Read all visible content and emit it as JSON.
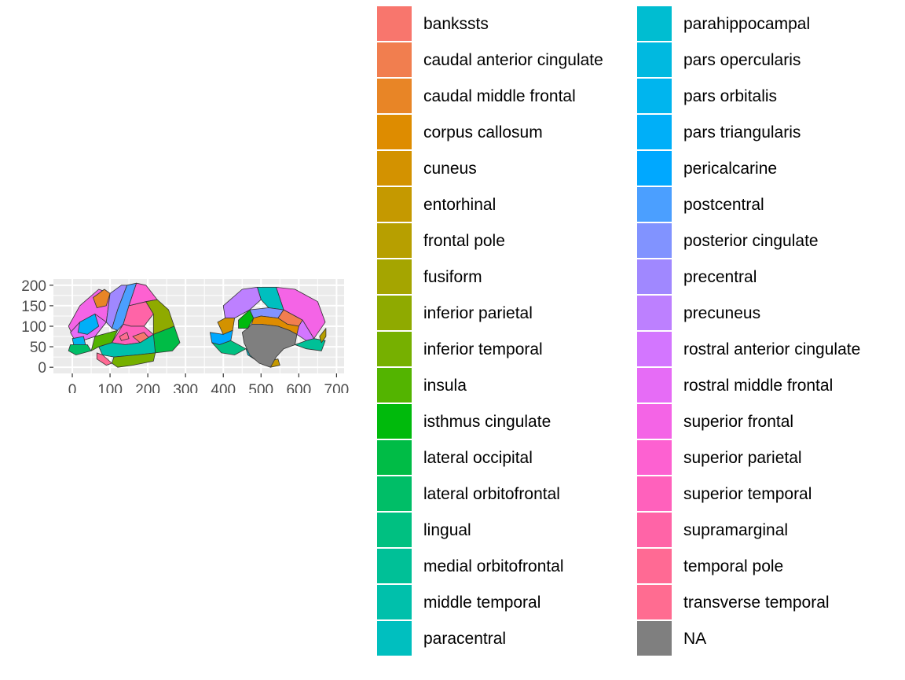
{
  "chart_data": {
    "type": "map",
    "title": "",
    "xlabel": "",
    "ylabel": "",
    "xlim": [
      -50,
      720
    ],
    "ylim": [
      -15,
      215
    ],
    "x_ticks": [
      "0",
      "100",
      "200",
      "300",
      "400",
      "500",
      "600",
      "700"
    ],
    "x_tick_values": [
      0,
      100,
      200,
      300,
      400,
      500,
      600,
      700
    ],
    "y_ticks": [
      "0",
      "50",
      "100",
      "150",
      "200"
    ],
    "y_tick_values": [
      0,
      50,
      100,
      150,
      200
    ],
    "panel_background": "#ebebeb",
    "grid_color": "#ffffff",
    "grid": true,
    "legend_position": "right",
    "legend": [
      {
        "label": "bankssts",
        "color": "#F8766D"
      },
      {
        "label": "caudal anterior cingulate",
        "color": "#F17E4F"
      },
      {
        "label": "caudal middle frontal",
        "color": "#E88526"
      },
      {
        "label": "corpus callosum",
        "color": "#DE8C00"
      },
      {
        "label": "cuneus",
        "color": "#D39200"
      },
      {
        "label": "entorhinal",
        "color": "#C59900"
      },
      {
        "label": "frontal pole",
        "color": "#B79F00"
      },
      {
        "label": "fusiform",
        "color": "#A5A500"
      },
      {
        "label": "inferior parietal",
        "color": "#8FAA00"
      },
      {
        "label": "inferior temporal",
        "color": "#76B000"
      },
      {
        "label": "insula",
        "color": "#53B400"
      },
      {
        "label": "isthmus cingulate",
        "color": "#00BA0C"
      },
      {
        "label": "lateral occipital",
        "color": "#00BC46"
      },
      {
        "label": "lateral orbitofrontal",
        "color": "#00BE67"
      },
      {
        "label": "lingual",
        "color": "#00C081"
      },
      {
        "label": "medial orbitofrontal",
        "color": "#00C097"
      },
      {
        "label": "middle temporal",
        "color": "#00C0AB"
      },
      {
        "label": "paracentral",
        "color": "#00BFBF"
      },
      {
        "label": "parahippocampal",
        "color": "#00BDD1"
      },
      {
        "label": "pars opercularis",
        "color": "#00B9E0"
      },
      {
        "label": "pars orbitalis",
        "color": "#00B5EE"
      },
      {
        "label": "pars triangularis",
        "color": "#00AFF8"
      },
      {
        "label": "pericalcarine",
        "color": "#00A8FF"
      },
      {
        "label": "postcentral",
        "color": "#4B9FFF"
      },
      {
        "label": "posterior cingulate",
        "color": "#8193FF"
      },
      {
        "label": "precentral",
        "color": "#A088FF"
      },
      {
        "label": "precuneus",
        "color": "#BD80FF"
      },
      {
        "label": "rostral anterior cingulate",
        "color": "#D376FF"
      },
      {
        "label": "rostral middle frontal",
        "color": "#E66CF6"
      },
      {
        "label": "superior frontal",
        "color": "#F464E6"
      },
      {
        "label": "superior parietal",
        "color": "#FD61D1"
      },
      {
        "label": "superior temporal",
        "color": "#FF61BC"
      },
      {
        "label": "supramarginal",
        "color": "#FF64A7"
      },
      {
        "label": "temporal pole",
        "color": "#FF6A94"
      },
      {
        "label": "transverse temporal",
        "color": "#FF6C91"
      },
      {
        "label": "NA",
        "color": "#7F7F7F"
      }
    ],
    "series": [
      {
        "region": "superior frontal",
        "color": "#F464E6",
        "points": [
          [
            -10,
            100
          ],
          [
            20,
            150
          ],
          [
            70,
            190
          ],
          [
            100,
            180
          ],
          [
            90,
            110
          ],
          [
            60,
            75
          ],
          [
            10,
            60
          ]
        ]
      },
      {
        "region": "caudal middle frontal",
        "color": "#E88526",
        "points": [
          [
            55,
            170
          ],
          [
            85,
            190
          ],
          [
            100,
            180
          ],
          [
            90,
            150
          ],
          [
            65,
            145
          ]
        ]
      },
      {
        "region": "rostral middle frontal",
        "color": "#E66CF6",
        "points": [
          [
            10,
            60
          ],
          [
            60,
            75
          ],
          [
            90,
            110
          ],
          [
            60,
            130
          ],
          [
            20,
            110
          ],
          [
            -5,
            85
          ]
        ]
      },
      {
        "region": "pars triangularis",
        "color": "#00AFF8",
        "points": [
          [
            20,
            110
          ],
          [
            60,
            130
          ],
          [
            70,
            100
          ],
          [
            40,
            80
          ],
          [
            15,
            85
          ]
        ]
      },
      {
        "region": "pars orbitalis",
        "color": "#00B5EE",
        "points": [
          [
            0,
            70
          ],
          [
            30,
            75
          ],
          [
            35,
            55
          ],
          [
            5,
            50
          ]
        ]
      },
      {
        "region": "lateral orbitofrontal",
        "color": "#00BE67",
        "points": [
          [
            -5,
            55
          ],
          [
            40,
            55
          ],
          [
            50,
            40
          ],
          [
            10,
            30
          ],
          [
            -10,
            40
          ]
        ]
      },
      {
        "region": "precentral",
        "color": "#A088FF",
        "points": [
          [
            100,
            180
          ],
          [
            130,
            200
          ],
          [
            145,
            200
          ],
          [
            120,
            140
          ],
          [
            105,
            95
          ],
          [
            90,
            110
          ]
        ]
      },
      {
        "region": "postcentral",
        "color": "#4B9FFF",
        "points": [
          [
            145,
            200
          ],
          [
            170,
            205
          ],
          [
            150,
            150
          ],
          [
            135,
            105
          ],
          [
            120,
            90
          ],
          [
            105,
            95
          ],
          [
            120,
            140
          ]
        ]
      },
      {
        "region": "supramarginal",
        "color": "#FF64A7",
        "points": [
          [
            150,
            150
          ],
          [
            195,
            160
          ],
          [
            215,
            130
          ],
          [
            190,
            100
          ],
          [
            155,
            100
          ],
          [
            135,
            105
          ]
        ]
      },
      {
        "region": "superior parietal",
        "color": "#FD61D1",
        "points": [
          [
            170,
            205
          ],
          [
            195,
            200
          ],
          [
            225,
            165
          ],
          [
            195,
            160
          ],
          [
            150,
            150
          ]
        ]
      },
      {
        "region": "inferior parietal",
        "color": "#8FAA00",
        "points": [
          [
            225,
            165
          ],
          [
            255,
            140
          ],
          [
            270,
            100
          ],
          [
            215,
            80
          ],
          [
            215,
            130
          ],
          [
            195,
            160
          ]
        ]
      },
      {
        "region": "lateral occipital",
        "color": "#00BC46",
        "points": [
          [
            270,
            100
          ],
          [
            285,
            60
          ],
          [
            265,
            40
          ],
          [
            220,
            35
          ],
          [
            215,
            80
          ]
        ]
      },
      {
        "region": "insula",
        "color": "#53B400",
        "points": [
          [
            60,
            75
          ],
          [
            120,
            90
          ],
          [
            105,
            60
          ],
          [
            70,
            50
          ],
          [
            50,
            40
          ]
        ]
      },
      {
        "region": "superior temporal",
        "color": "#FF61BC",
        "points": [
          [
            105,
            60
          ],
          [
            135,
            105
          ],
          [
            155,
            100
          ],
          [
            190,
            100
          ],
          [
            215,
            80
          ],
          [
            180,
            60
          ],
          [
            140,
            55
          ]
        ]
      },
      {
        "region": "bankssts",
        "color": "#F8766D",
        "points": [
          [
            160,
            75
          ],
          [
            190,
            85
          ],
          [
            205,
            70
          ],
          [
            180,
            60
          ]
        ]
      },
      {
        "region": "transverse temporal",
        "color": "#FF6C91",
        "points": [
          [
            125,
            75
          ],
          [
            145,
            85
          ],
          [
            150,
            70
          ],
          [
            130,
            65
          ]
        ]
      },
      {
        "region": "middle temporal",
        "color": "#00C0AB",
        "points": [
          [
            70,
            50
          ],
          [
            105,
            60
          ],
          [
            140,
            55
          ],
          [
            180,
            60
          ],
          [
            215,
            80
          ],
          [
            220,
            35
          ],
          [
            170,
            30
          ],
          [
            110,
            25
          ],
          [
            80,
            30
          ]
        ]
      },
      {
        "region": "inferior temporal",
        "color": "#76B000",
        "points": [
          [
            110,
            25
          ],
          [
            170,
            30
          ],
          [
            220,
            35
          ],
          [
            215,
            15
          ],
          [
            160,
            5
          ],
          [
            120,
            0
          ],
          [
            105,
            10
          ]
        ]
      },
      {
        "region": "temporal pole",
        "color": "#FF6A94",
        "points": [
          [
            65,
            35
          ],
          [
            80,
            30
          ],
          [
            105,
            10
          ],
          [
            90,
            5
          ],
          [
            65,
            20
          ]
        ]
      },
      {
        "region": "superior frontal",
        "color": "#F464E6",
        "points": [
          [
            640,
            70
          ],
          [
            670,
            110
          ],
          [
            650,
            160
          ],
          [
            590,
            190
          ],
          [
            540,
            195
          ],
          [
            560,
            140
          ],
          [
            610,
            115
          ]
        ]
      },
      {
        "region": "paracentral",
        "color": "#00BFBF",
        "points": [
          [
            490,
            195
          ],
          [
            540,
            195
          ],
          [
            560,
            140
          ],
          [
            520,
            145
          ],
          [
            500,
            165
          ]
        ]
      },
      {
        "region": "precuneus",
        "color": "#BD80FF",
        "points": [
          [
            400,
            150
          ],
          [
            450,
            190
          ],
          [
            490,
            195
          ],
          [
            500,
            165
          ],
          [
            470,
            140
          ],
          [
            430,
            120
          ],
          [
            405,
            120
          ]
        ]
      },
      {
        "region": "cuneus",
        "color": "#D39200",
        "points": [
          [
            385,
            110
          ],
          [
            405,
            120
          ],
          [
            430,
            120
          ],
          [
            425,
            90
          ],
          [
            400,
            80
          ]
        ]
      },
      {
        "region": "pericalcarine",
        "color": "#00A8FF",
        "points": [
          [
            365,
            85
          ],
          [
            400,
            80
          ],
          [
            425,
            90
          ],
          [
            420,
            65
          ],
          [
            390,
            55
          ],
          [
            370,
            60
          ]
        ]
      },
      {
        "region": "lingual",
        "color": "#00C081",
        "points": [
          [
            370,
            60
          ],
          [
            390,
            55
          ],
          [
            420,
            65
          ],
          [
            460,
            45
          ],
          [
            430,
            30
          ],
          [
            395,
            35
          ]
        ]
      },
      {
        "region": "isthmus cingulate",
        "color": "#00BA0C",
        "points": [
          [
            440,
            115
          ],
          [
            470,
            140
          ],
          [
            480,
            120
          ],
          [
            465,
            95
          ],
          [
            440,
            95
          ]
        ]
      },
      {
        "region": "posterior cingulate",
        "color": "#8193FF",
        "points": [
          [
            470,
            140
          ],
          [
            520,
            145
          ],
          [
            560,
            140
          ],
          [
            545,
            120
          ],
          [
            500,
            125
          ],
          [
            480,
            120
          ]
        ]
      },
      {
        "region": "caudal anterior cingulate",
        "color": "#F17E4F",
        "points": [
          [
            560,
            140
          ],
          [
            610,
            115
          ],
          [
            600,
            100
          ],
          [
            570,
            105
          ],
          [
            545,
            120
          ]
        ]
      },
      {
        "region": "rostral anterior cingulate",
        "color": "#D376FF",
        "points": [
          [
            610,
            115
          ],
          [
            640,
            70
          ],
          [
            620,
            65
          ],
          [
            595,
            80
          ],
          [
            600,
            100
          ]
        ]
      },
      {
        "region": "corpus callosum",
        "color": "#DE8C00",
        "points": [
          [
            480,
            120
          ],
          [
            500,
            125
          ],
          [
            545,
            120
          ],
          [
            570,
            105
          ],
          [
            600,
            100
          ],
          [
            595,
            80
          ],
          [
            575,
            90
          ],
          [
            545,
            100
          ],
          [
            500,
            105
          ],
          [
            475,
            105
          ]
        ]
      },
      {
        "region": "medial orbitofrontal",
        "color": "#00C097",
        "points": [
          [
            620,
            65
          ],
          [
            640,
            70
          ],
          [
            670,
            65
          ],
          [
            660,
            40
          ],
          [
            620,
            45
          ],
          [
            590,
            55
          ]
        ]
      },
      {
        "region": "parahippocampal",
        "color": "#00BDD1",
        "points": [
          [
            460,
            45
          ],
          [
            500,
            40
          ],
          [
            520,
            15
          ],
          [
            490,
            15
          ],
          [
            465,
            30
          ]
        ]
      },
      {
        "region": "entorhinal",
        "color": "#C59900",
        "points": [
          [
            520,
            15
          ],
          [
            545,
            20
          ],
          [
            550,
            5
          ],
          [
            525,
            0
          ]
        ]
      },
      {
        "region": "frontal pole",
        "color": "#B79F00",
        "points": [
          [
            655,
            75
          ],
          [
            672,
            95
          ],
          [
            672,
            75
          ],
          [
            660,
            60
          ]
        ]
      },
      {
        "region": "NA",
        "color": "#7F7F7F",
        "points": [
          [
            465,
            95
          ],
          [
            475,
            105
          ],
          [
            500,
            105
          ],
          [
            545,
            100
          ],
          [
            575,
            90
          ],
          [
            595,
            80
          ],
          [
            590,
            55
          ],
          [
            560,
            45
          ],
          [
            540,
            25
          ],
          [
            525,
            0
          ],
          [
            495,
            10
          ],
          [
            470,
            30
          ],
          [
            455,
            60
          ],
          [
            450,
            85
          ]
        ]
      }
    ]
  }
}
